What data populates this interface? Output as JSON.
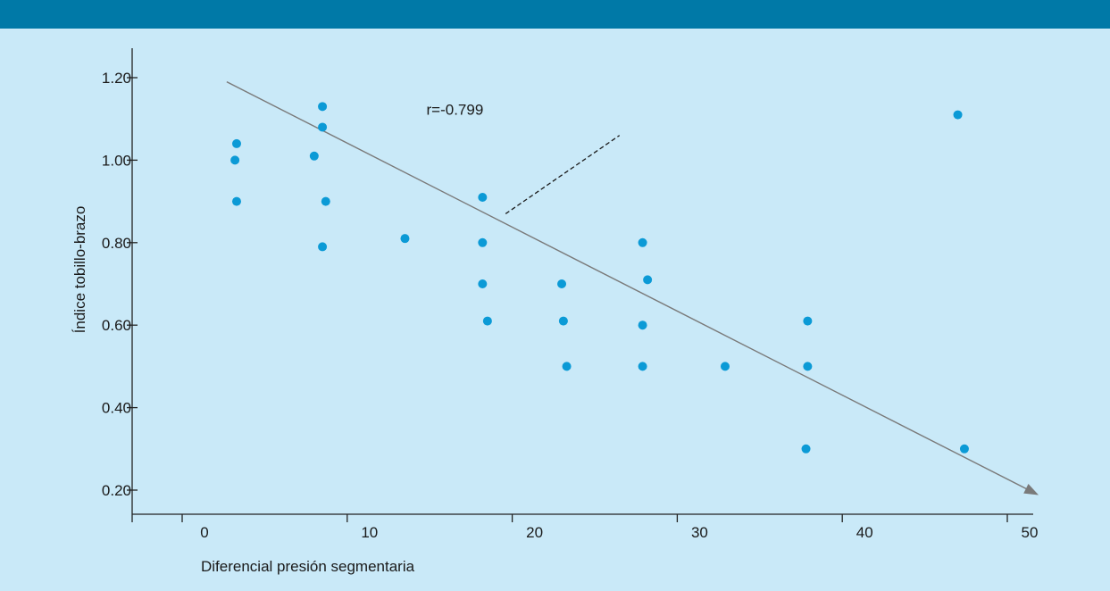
{
  "colors": {
    "header_bar": "#0079a7",
    "background": "#c9e9f8",
    "point": "#0b9ad6",
    "trend_line": "#7a7a7a",
    "axis": "#222222"
  },
  "chart_data": {
    "type": "scatter",
    "title": "",
    "xlabel": "Diferencial presión segmentaria",
    "ylabel": "Índice tobillo-brazo",
    "xlim": [
      -3,
      52
    ],
    "ylim": [
      0.16,
      1.31
    ],
    "x_ticks": [
      0,
      10,
      20,
      30,
      40,
      50
    ],
    "x_tick_labels": [
      "0",
      "10",
      "20",
      "30",
      "40",
      "50"
    ],
    "y_ticks": [
      0.2,
      0.4,
      0.6,
      0.8,
      1.0,
      1.2
    ],
    "y_tick_labels": [
      "0.20",
      "0.40",
      "0.60",
      "0.80",
      "1.00",
      "1.20"
    ],
    "grid": false,
    "points": [
      {
        "x": 3.3,
        "y": 1.04
      },
      {
        "x": 3.2,
        "y": 1.0
      },
      {
        "x": 3.3,
        "y": 0.9
      },
      {
        "x": 8.5,
        "y": 1.13
      },
      {
        "x": 8.5,
        "y": 1.08
      },
      {
        "x": 8.0,
        "y": 1.01
      },
      {
        "x": 8.7,
        "y": 0.9
      },
      {
        "x": 8.5,
        "y": 0.79
      },
      {
        "x": 13.5,
        "y": 0.81
      },
      {
        "x": 18.2,
        "y": 0.91
      },
      {
        "x": 18.2,
        "y": 0.8
      },
      {
        "x": 18.2,
        "y": 0.7
      },
      {
        "x": 18.5,
        "y": 0.61
      },
      {
        "x": 23.0,
        "y": 0.7
      },
      {
        "x": 23.1,
        "y": 0.61
      },
      {
        "x": 23.3,
        "y": 0.5
      },
      {
        "x": 27.9,
        "y": 0.8
      },
      {
        "x": 28.2,
        "y": 0.71
      },
      {
        "x": 27.9,
        "y": 0.6
      },
      {
        "x": 27.9,
        "y": 0.5
      },
      {
        "x": 32.9,
        "y": 0.5
      },
      {
        "x": 37.9,
        "y": 0.61
      },
      {
        "x": 37.9,
        "y": 0.5
      },
      {
        "x": 37.8,
        "y": 0.3
      },
      {
        "x": 47.0,
        "y": 1.11
      },
      {
        "x": 47.4,
        "y": 0.3
      }
    ],
    "trend_line": {
      "x": [
        2.7,
        51.8
      ],
      "y": [
        1.19,
        0.19
      ],
      "arrow": true
    },
    "annotation": {
      "text": "r=-0.799",
      "x": 14.8,
      "y": 1.11
    },
    "annotation_leader": {
      "x": [
        19.6,
        26.5
      ],
      "y": [
        0.87,
        1.06
      ]
    }
  }
}
